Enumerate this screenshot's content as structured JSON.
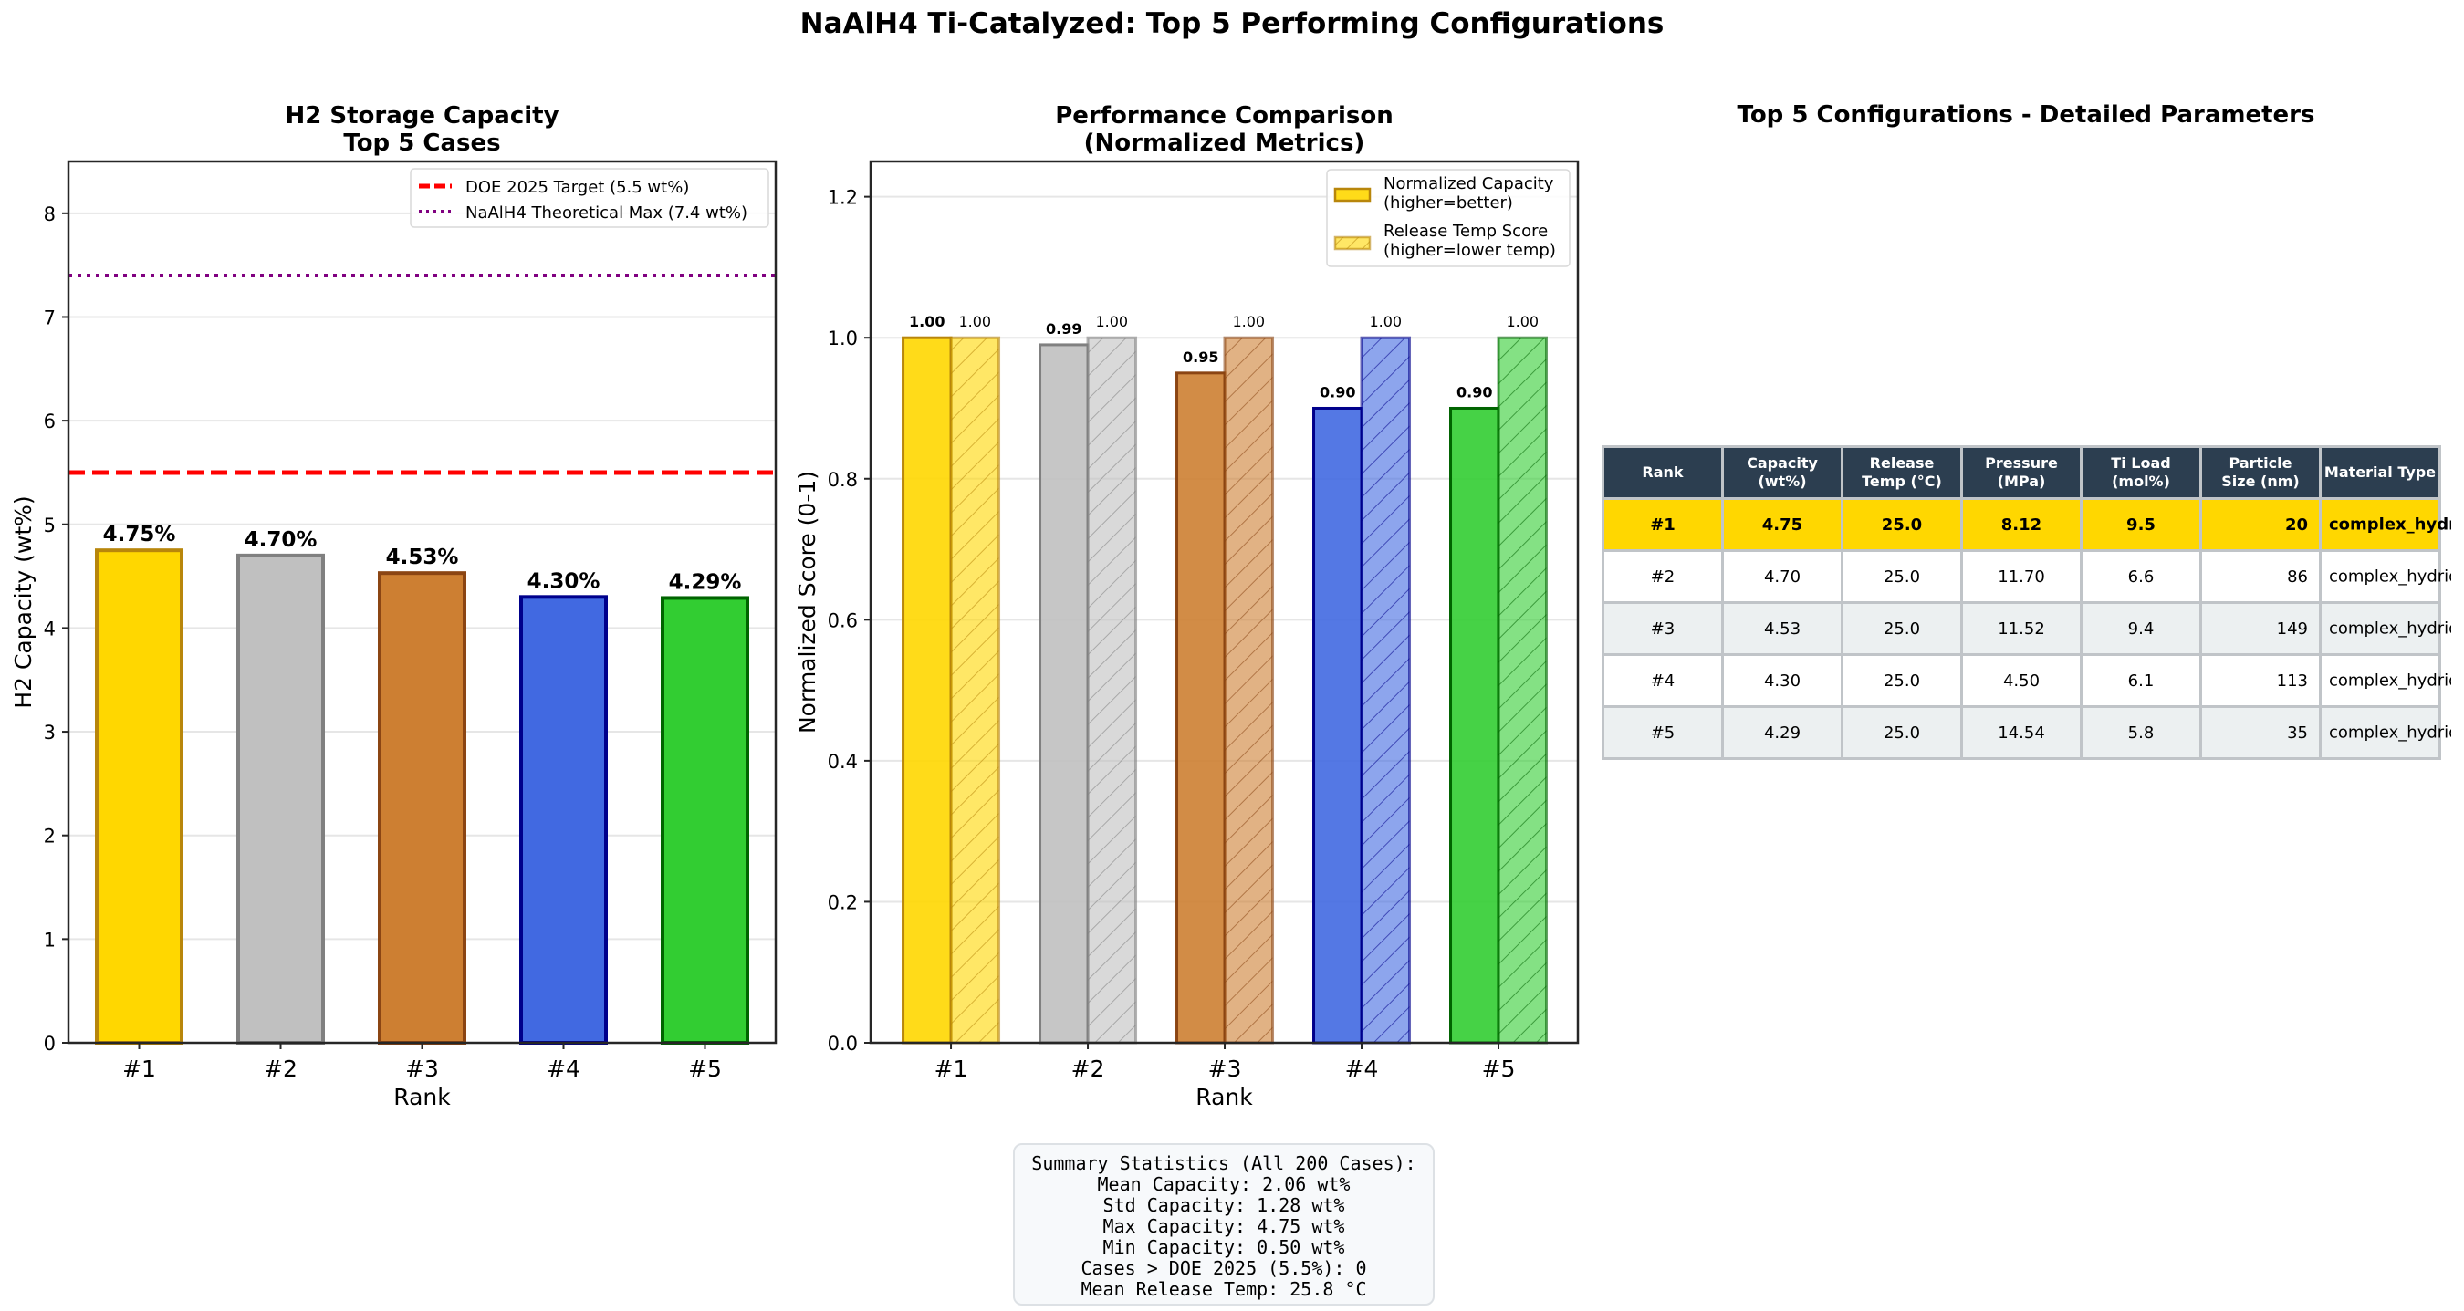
{
  "figure": {
    "title": "NaAlH4 Ti-Catalyzed: Top 5 Performing Configurations"
  },
  "chart_data": [
    {
      "type": "bar",
      "title": "H2 Storage Capacity\nTop 5 Cases",
      "title_lines": [
        "H2 Storage Capacity",
        "Top 5 Cases"
      ],
      "xlabel": "Rank",
      "ylabel": "H2 Capacity (wt%)",
      "categories": [
        "#1",
        "#2",
        "#3",
        "#4",
        "#5"
      ],
      "values": [
        4.75,
        4.7,
        4.53,
        4.3,
        4.29
      ],
      "value_labels": [
        "4.75%",
        "4.70%",
        "4.53%",
        "4.30%",
        "4.29%"
      ],
      "bar_colors": [
        "#FFD700",
        "#C0C0C0",
        "#CD7F32",
        "#4169E1",
        "#32CD32"
      ],
      "edge_colors": [
        "#B8860B",
        "#808080",
        "#8B4513",
        "#00008B",
        "#006400"
      ],
      "ylim": [
        0,
        8.5
      ],
      "yticks": [
        0,
        1,
        2,
        3,
        4,
        5,
        6,
        7,
        8
      ],
      "grid": "y",
      "reference_lines": [
        {
          "label": "DOE 2025 Target (5.5 wt%)",
          "y": 5.5,
          "color": "#FF0000",
          "style": "dashed"
        },
        {
          "label": "NaAlH4 Theoretical Max (7.4 wt%)",
          "y": 7.4,
          "color": "#800080",
          "style": "dotted"
        }
      ],
      "legend_position": "top-right"
    },
    {
      "type": "bar",
      "title": "Performance Comparison\n(Normalized Metrics)",
      "title_lines": [
        "Performance Comparison",
        "(Normalized Metrics)"
      ],
      "xlabel": "Rank",
      "ylabel": "Normalized Score (0-1)",
      "categories": [
        "#1",
        "#2",
        "#3",
        "#4",
        "#5"
      ],
      "series": [
        {
          "name": "Normalized Capacity\n(higher=better)",
          "name_lines": [
            "Normalized Capacity",
            "(higher=better)"
          ],
          "values": [
            1.0,
            0.99,
            0.95,
            0.9,
            0.9
          ],
          "labels": [
            "1.00",
            "0.99",
            "0.95",
            "0.90",
            "0.90"
          ],
          "hatched": false
        },
        {
          "name": "Release Temp Score\n(higher=lower temp)",
          "name_lines": [
            "Release Temp Score",
            "(higher=lower temp)"
          ],
          "values": [
            1.0,
            1.0,
            1.0,
            1.0,
            1.0
          ],
          "labels": [
            "1.00",
            "1.00",
            "1.00",
            "1.00",
            "1.00"
          ],
          "hatched": true
        }
      ],
      "bar_colors": [
        "#FFD700",
        "#C0C0C0",
        "#CD7F32",
        "#4169E1",
        "#32CD32"
      ],
      "edge_colors": [
        "#B8860B",
        "#808080",
        "#8B4513",
        "#00008B",
        "#006400"
      ],
      "ylim": [
        0,
        1.25
      ],
      "yticks": [
        0.0,
        0.2,
        0.4,
        0.6,
        0.8,
        1.0,
        1.2
      ],
      "ytick_labels": [
        "0.0",
        "0.2",
        "0.4",
        "0.6",
        "0.8",
        "1.0",
        "1.2"
      ],
      "grid": "y",
      "legend_position": "top-right"
    },
    {
      "type": "table",
      "title": "Top 5 Configurations - Detailed Parameters",
      "columns": [
        "Rank",
        "Capacity\n(wt%)",
        "Release\nTemp (°C)",
        "Pressure\n(MPa)",
        "Ti Load\n(mol%)",
        "Particle\nSize (nm)",
        "Material Type"
      ],
      "column_lines": [
        [
          "Rank"
        ],
        [
          "Capacity",
          "(wt%)"
        ],
        [
          "Release",
          "Temp (°C)"
        ],
        [
          "Pressure",
          "(MPa)"
        ],
        [
          "Ti Load",
          "(mol%)"
        ],
        [
          "Particle",
          "Size (nm)"
        ],
        [
          "Material Type"
        ]
      ],
      "rows": [
        [
          "#1",
          "4.75",
          "25.0",
          "8.12",
          "9.5",
          "20",
          "complex_hydride_n"
        ],
        [
          "#2",
          "4.70",
          "25.0",
          "11.70",
          "6.6",
          "86",
          "complex_hydride_na"
        ],
        [
          "#3",
          "4.53",
          "25.0",
          "11.52",
          "9.4",
          "149",
          "complex_hydride"
        ],
        [
          "#4",
          "4.30",
          "25.0",
          "4.50",
          "6.1",
          "113",
          "complex_hydride"
        ],
        [
          "#5",
          "4.29",
          "25.0",
          "14.54",
          "5.8",
          "35",
          "complex_hydride"
        ]
      ],
      "header_color": "#2c3e50",
      "highlight_row_color": "#FFD700",
      "alt_row_color": "#ecf0f1"
    }
  ],
  "summary": {
    "lines": [
      "Summary Statistics (All 200 Cases):",
      "Mean Capacity: 2.06 wt%",
      "Std Capacity: 1.28 wt%",
      "Max Capacity: 4.75 wt%",
      "Min Capacity: 0.50 wt%",
      "Cases > DOE 2025 (5.5%): 0",
      "Mean Release Temp: 25.8 °C"
    ]
  }
}
